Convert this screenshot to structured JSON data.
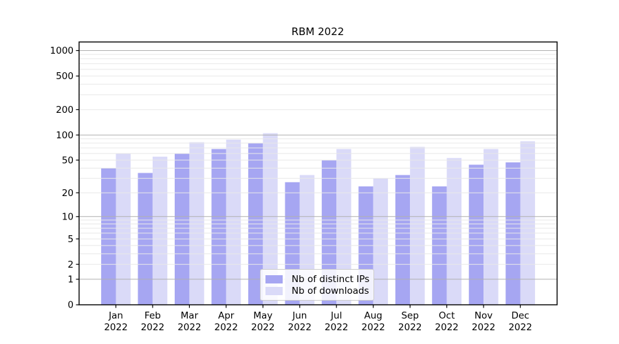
{
  "chart_data": {
    "type": "bar",
    "title": "RBM 2022",
    "categories": [
      "Jan",
      "Feb",
      "Mar",
      "Apr",
      "May",
      "Jun",
      "Jul",
      "Aug",
      "Sep",
      "Oct",
      "Nov",
      "Dec"
    ],
    "x_tick_second_line": "2022",
    "series": [
      {
        "name": "Nb of distinct IPs",
        "color": "#a6a6f2",
        "values": [
          40,
          35,
          60,
          68,
          80,
          27,
          50,
          24,
          33,
          24,
          44,
          47
        ]
      },
      {
        "name": "Nb of downloads",
        "color": "#dadaf8",
        "values": [
          60,
          55,
          82,
          88,
          105,
          33,
          68,
          30,
          72,
          53,
          68,
          84
        ]
      }
    ],
    "yscale": "log1p",
    "yticks": [
      0,
      1,
      2,
      5,
      10,
      20,
      50,
      100,
      200,
      500,
      1000
    ],
    "ylim": [
      0,
      1264
    ],
    "grid": true,
    "legend_position": "lower center",
    "colors": {
      "major_grid": "#b0b0b0",
      "minor_grid": "#e8e8e8",
      "axis": "#000000",
      "text": "#000000",
      "background": "#ffffff"
    }
  }
}
